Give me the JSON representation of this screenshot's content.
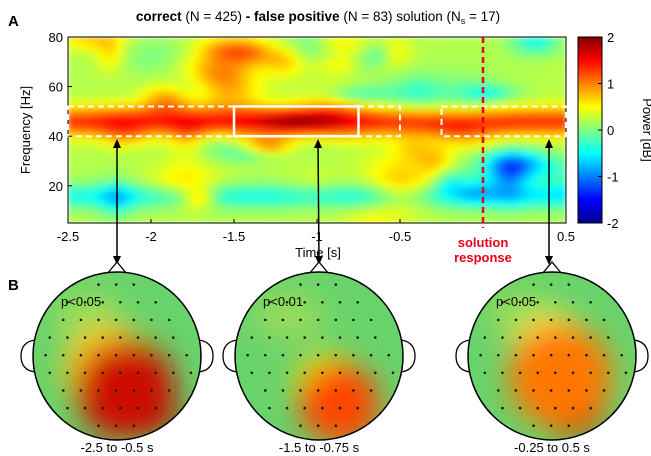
{
  "panel_a": {
    "label": "A",
    "title": {
      "p1": "correct",
      "p2": " (N = 425) ",
      "p3": "- false positive",
      "p4": " (N = 83) solution (N",
      "p5": "s",
      "p6": " = 17)"
    },
    "ylabel": "Frequency [Hz]",
    "xlabel": "Time [s]",
    "colorbar": {
      "label": "Power [dB]",
      "range": [
        -2,
        2
      ],
      "ticks": [
        "2",
        "1",
        "0",
        "-1",
        "-2"
      ],
      "tick_values": [
        2,
        1,
        0,
        -1,
        -2
      ],
      "colormap": "jet"
    },
    "annotation": {
      "line1": "solution",
      "line2": "response",
      "x": 0.0,
      "color": "#e8001c"
    }
  },
  "panel_b": {
    "label": "B",
    "topomaps": [
      {
        "pvalue": "p<0.05",
        "window": "-2.5 to -0.5 s",
        "hotspot": "right-posterior"
      },
      {
        "pvalue": "p<0.01",
        "window": "-1.5 to -0.75 s",
        "hotspot": "right-posterior"
      },
      {
        "pvalue": "p<0.05",
        "window": "-0.25 to 0.5 s",
        "hotspot": "right-central-posterior"
      }
    ]
  },
  "chart_data": {
    "type": "heatmap",
    "x_axis": {
      "label": "Time [s]",
      "range": [
        -2.5,
        0.5
      ],
      "ticks": [
        -2.5,
        -2,
        -1.5,
        -1,
        -0.5,
        0.5
      ],
      "tick_labels": [
        "-2.5",
        "-2",
        "-1.5",
        "-1",
        "-0.5",
        "0.5"
      ]
    },
    "y_axis": {
      "label": "Frequency [Hz]",
      "range": [
        5,
        80
      ],
      "ticks": [
        20,
        40,
        60,
        80
      ],
      "tick_labels": [
        "20",
        "40",
        "60",
        "80"
      ]
    },
    "color_range": [
      -2,
      2
    ],
    "highlight_windows": [
      {
        "x": [
          -2.5,
          -0.5
        ],
        "y": [
          40,
          52
        ],
        "style": "dashed"
      },
      {
        "x": [
          -1.5,
          -0.75
        ],
        "y": [
          40,
          52
        ],
        "style": "solid"
      },
      {
        "x": [
          -0.25,
          0.5
        ],
        "y": [
          40,
          52
        ],
        "style": "dashed"
      }
    ]
  }
}
